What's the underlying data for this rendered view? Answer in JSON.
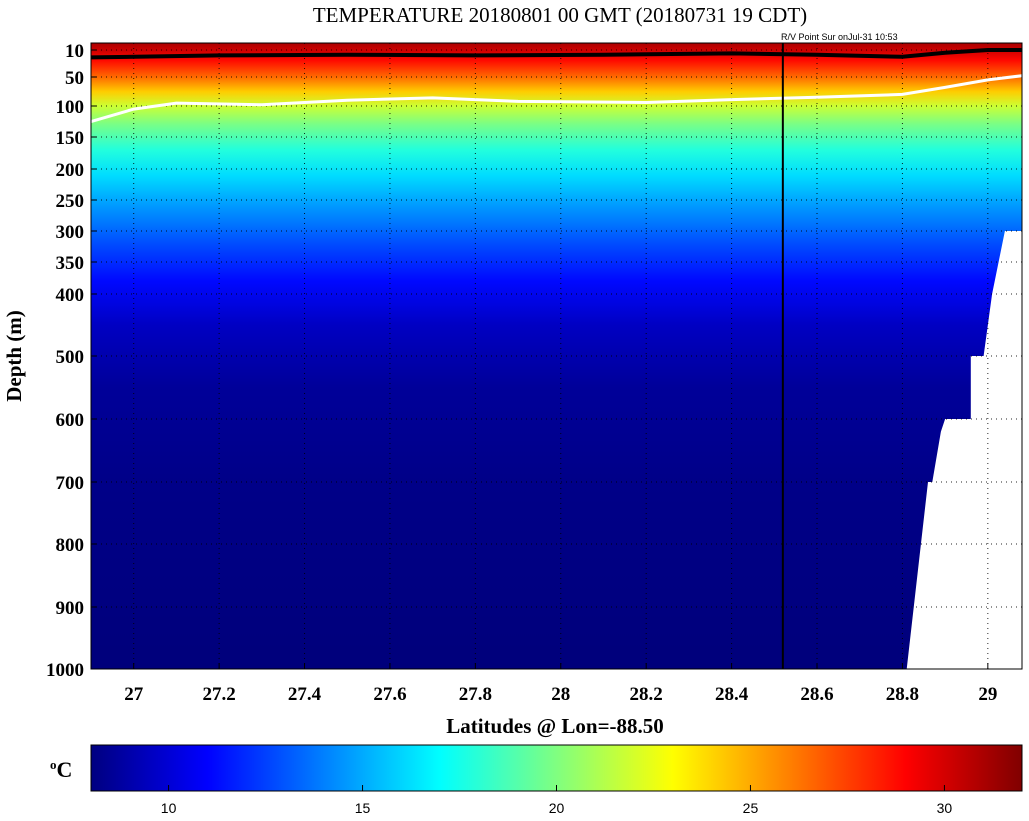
{
  "chart_data": {
    "type": "heatmap",
    "title": "TEMPERATURE 20180801 00 GMT (20180731 19 CDT)",
    "annotation": "R/V Point Sur onJul-31 10:53",
    "xlabel": "Latitudes @ Lon=-88.50",
    "ylabel": "Depth (m)",
    "xlim": [
      26.9,
      29.08
    ],
    "xticks": [
      27,
      27.2,
      27.4,
      27.6,
      27.8,
      28,
      28.2,
      28.4,
      28.6,
      28.8,
      29
    ],
    "xtick_labels": [
      "27",
      "27.2",
      "27.4",
      "27.6",
      "27.8",
      "28",
      "28.2",
      "28.4",
      "28.6",
      "28.8",
      "29"
    ],
    "ylim": [
      0,
      1000
    ],
    "yticks": [
      10,
      50,
      100,
      150,
      200,
      250,
      300,
      350,
      400,
      500,
      600,
      700,
      800,
      900,
      1000
    ],
    "ytick_labels": [
      "10",
      "50",
      "100",
      "150",
      "200",
      "250",
      "300",
      "350",
      "400",
      "500",
      "600",
      "700",
      "800",
      "900",
      "1000"
    ],
    "y_scale": "piecewise (expanded upper 400 m)",
    "grid": true,
    "colorbar": {
      "label": "oC",
      "range": [
        8,
        32
      ],
      "ticks": [
        10,
        15,
        20,
        25,
        30
      ],
      "tick_labels": [
        "10",
        "15",
        "20",
        "25",
        "30"
      ],
      "colormap": "jet",
      "placement": "bottom"
    },
    "temperature_profile": {
      "depth": [
        0,
        10,
        25,
        50,
        75,
        100,
        130,
        170,
        210,
        260,
        320,
        380,
        450,
        550,
        700,
        1000
      ],
      "temp": [
        31,
        30.2,
        28.8,
        26.5,
        24.2,
        21.8,
        19.8,
        17.8,
        16.2,
        14.6,
        12.8,
        11.2,
        9.6,
        8.6,
        8.2,
        7.9
      ]
    },
    "isotherm_black_depth": {
      "lat": [
        26.9,
        27.2,
        27.5,
        27.8,
        28.1,
        28.4,
        28.6,
        28.8,
        28.9,
        29.0,
        29.08
      ],
      "depth": [
        21,
        18,
        17,
        18,
        17,
        15,
        17,
        20,
        14,
        10,
        10
      ]
    },
    "isotherm_white_depth": {
      "lat": [
        26.9,
        27.0,
        27.1,
        27.3,
        27.5,
        27.7,
        27.9,
        28.2,
        28.4,
        28.6,
        28.8,
        28.9,
        29.0,
        29.08
      ],
      "depth": [
        125,
        105,
        95,
        98,
        90,
        86,
        92,
        94,
        89,
        85,
        80,
        68,
        55,
        48
      ]
    },
    "ship_position_lat": 28.52,
    "seafloor": {
      "lat": [
        28.81,
        28.86,
        28.87,
        28.89,
        28.9,
        28.96,
        28.96,
        28.99,
        29.01,
        29.04,
        29.08
      ],
      "depth": [
        1000,
        700,
        700,
        620,
        600,
        600,
        500,
        500,
        400,
        300,
        300
      ]
    }
  }
}
